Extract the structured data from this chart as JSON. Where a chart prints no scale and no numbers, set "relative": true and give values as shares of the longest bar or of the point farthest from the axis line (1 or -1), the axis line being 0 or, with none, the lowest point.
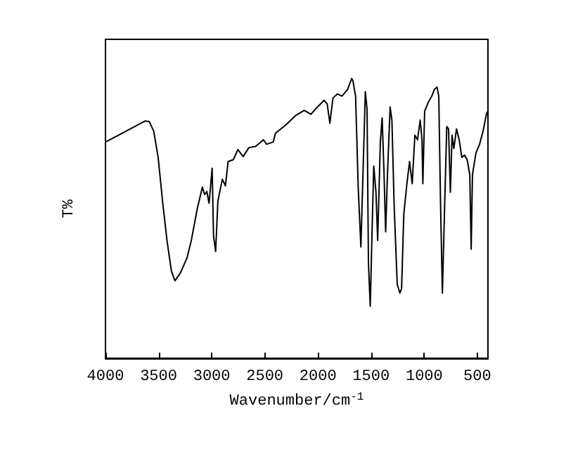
{
  "chart_data": {
    "type": "line",
    "xlabel": "Wavenumber/cm$^{-1}$",
    "ylabel": "T%",
    "relative": true,
    "xlim": [
      4000,
      400
    ],
    "xticks": [
      4000,
      3500,
      3000,
      2500,
      2000,
      1500,
      1000,
      500
    ],
    "grid": false,
    "marker": "none",
    "line_style": "solid",
    "series": [
      {
        "color": "#000000",
        "x": [
          4000,
          3879,
          3629,
          3588,
          3546,
          3504,
          3463,
          3421,
          3379,
          3346,
          3296,
          3233,
          3192,
          3138,
          3088,
          3067,
          3046,
          3025,
          2996,
          2983,
          2963,
          2942,
          2900,
          2871,
          2846,
          2796,
          2754,
          2704,
          2650,
          2588,
          2513,
          2483,
          2421,
          2400,
          2296,
          2213,
          2129,
          2067,
          2025,
          1942,
          1913,
          1888,
          1859,
          1817,
          1775,
          1721,
          1683,
          1671,
          1646,
          1621,
          1596,
          1579,
          1554,
          1538,
          1525,
          1508,
          1492,
          1475,
          1454,
          1438,
          1413,
          1396,
          1379,
          1363,
          1346,
          1321,
          1304,
          1283,
          1254,
          1229,
          1213,
          1192,
          1163,
          1138,
          1113,
          1088,
          1063,
          1038,
          1021,
          1013,
          996,
          963,
          929,
          904,
          879,
          863,
          846,
          829,
          813,
          788,
          771,
          754,
          738,
          721,
          696,
          671,
          646,
          621,
          596,
          571,
          558,
          546,
          513,
          479,
          446,
          413,
          400
        ],
        "values": [
          0.773,
          0.797,
          0.848,
          0.846,
          0.812,
          0.718,
          0.562,
          0.421,
          0.311,
          0.277,
          0.304,
          0.358,
          0.421,
          0.531,
          0.612,
          0.585,
          0.596,
          0.554,
          0.679,
          0.437,
          0.382,
          0.562,
          0.64,
          0.616,
          0.703,
          0.71,
          0.746,
          0.721,
          0.753,
          0.757,
          0.781,
          0.765,
          0.773,
          0.804,
          0.836,
          0.867,
          0.886,
          0.872,
          0.89,
          0.922,
          0.909,
          0.84,
          0.93,
          0.945,
          0.937,
          0.961,
          1,
          0.992,
          0.937,
          0.609,
          0.398,
          0.624,
          0.953,
          0.89,
          0.343,
          0.186,
          0.437,
          0.687,
          0.593,
          0.421,
          0.773,
          0.859,
          0.671,
          0.452,
          0.656,
          0.898,
          0.851,
          0.546,
          0.264,
          0.233,
          0.249,
          0.515,
          0.624,
          0.703,
          0.624,
          0.797,
          0.781,
          0.851,
          0.781,
          0.624,
          0.883,
          0.914,
          0.937,
          0.961,
          0.969,
          0.937,
          0.546,
          0.233,
          0.468,
          0.828,
          0.82,
          0.593,
          0.797,
          0.75,
          0.82,
          0.781,
          0.718,
          0.726,
          0.71,
          0.656,
          0.39,
          0.656,
          0.734,
          0.765,
          0.812,
          0.875,
          0.883
        ]
      }
    ]
  }
}
